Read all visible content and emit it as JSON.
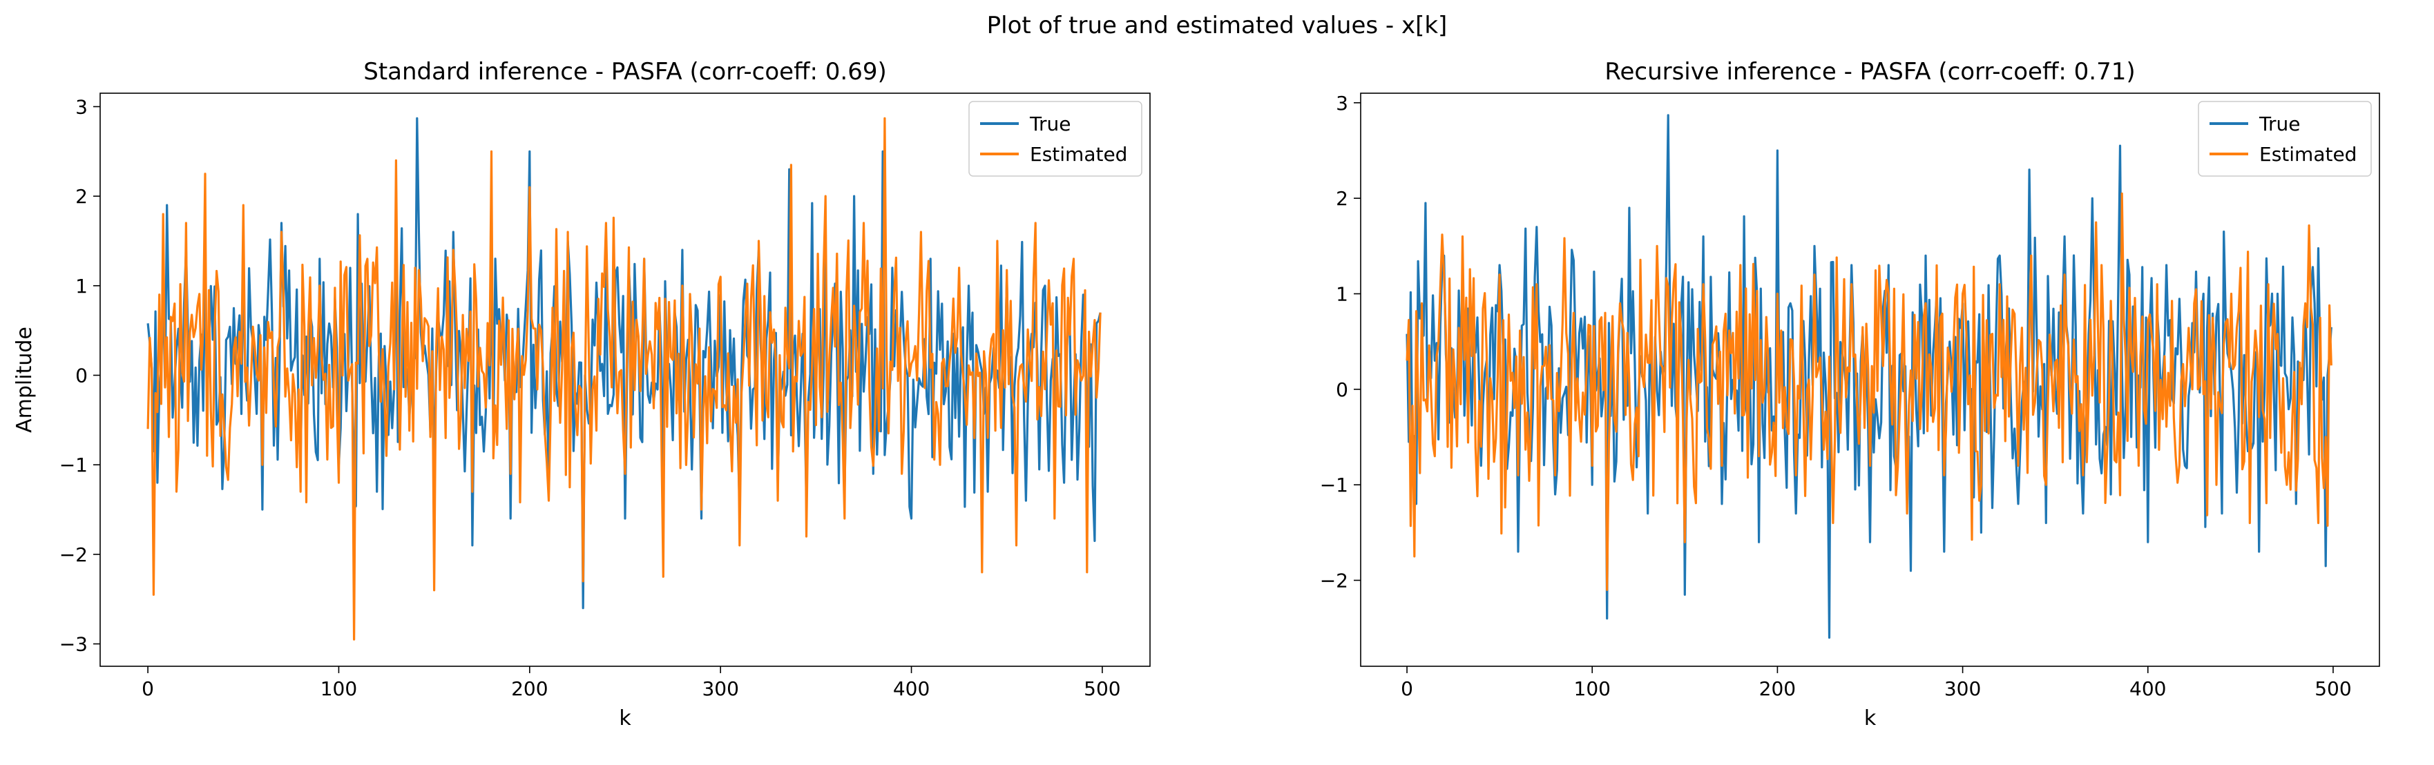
{
  "figure": {
    "suptitle": "Plot of true and estimated values - x[k]"
  },
  "colors": {
    "true": "#1f77b4",
    "estimated": "#ff7f0e",
    "axes": "#000000",
    "legend_border": "#cccccc"
  },
  "chart_data": [
    {
      "type": "line",
      "title": "Standard inference - PASFA (corr-coeff: 0.69)",
      "xlabel": "k",
      "ylabel": "Amplitude",
      "xlim": [
        -25,
        525
      ],
      "ylim": [
        -3.25,
        3.15
      ],
      "xticks": [
        0,
        100,
        200,
        300,
        400,
        500
      ],
      "yticks": [
        -3,
        -2,
        -1,
        0,
        1,
        2,
        3
      ],
      "legend": {
        "position": "upper-right",
        "entries": [
          "True",
          "Estimated"
        ]
      },
      "n_points": 500,
      "series": [
        {
          "name": "True",
          "color": "#1f77b4",
          "anchors": [
            [
              0,
              0.58
            ],
            [
              5,
              -1.2
            ],
            [
              10,
              1.9
            ],
            [
              15,
              0.3
            ],
            [
              20,
              1.4
            ],
            [
              30,
              1.2
            ],
            [
              40,
              -0.8
            ],
            [
              50,
              1.3
            ],
            [
              60,
              -1.5
            ],
            [
              70,
              1.7
            ],
            [
              80,
              -0.9
            ],
            [
              90,
              1.3
            ],
            [
              100,
              -1.0
            ],
            [
              110,
              1.8
            ],
            [
              120,
              -1.3
            ],
            [
              130,
              1.5
            ],
            [
              141,
              2.87
            ],
            [
              150,
              -1.2
            ],
            [
              160,
              1.6
            ],
            [
              170,
              -1.9
            ],
            [
              180,
              1.2
            ],
            [
              190,
              -1.6
            ],
            [
              200,
              2.5
            ],
            [
              210,
              -1.3
            ],
            [
              220,
              1.5
            ],
            [
              228,
              -2.6
            ],
            [
              240,
              1.3
            ],
            [
              250,
              -1.6
            ],
            [
              260,
              1.3
            ],
            [
              270,
              -1.1
            ],
            [
              280,
              1.4
            ],
            [
              290,
              -1.6
            ],
            [
              300,
              0.9
            ],
            [
              310,
              -1.5
            ],
            [
              320,
              1.4
            ],
            [
              330,
              -1.2
            ],
            [
              336,
              2.3
            ],
            [
              345,
              -1.4
            ],
            [
              355,
              1.6
            ],
            [
              365,
              -1.3
            ],
            [
              370,
              2.0
            ],
            [
              380,
              -1.1
            ],
            [
              385,
              2.5
            ],
            [
              390,
              1.2
            ],
            [
              400,
              -1.6
            ],
            [
              410,
              1.3
            ],
            [
              420,
              -0.8
            ],
            [
              430,
              1.0
            ],
            [
              440,
              -1.3
            ],
            [
              450,
              1.1
            ],
            [
              460,
              -1.4
            ],
            [
              470,
              1.0
            ],
            [
              480,
              -1.2
            ],
            [
              490,
              0.9
            ],
            [
              496,
              -1.85
            ],
            [
              499,
              0.7
            ]
          ]
        },
        {
          "name": "Estimated",
          "color": "#ff7f0e",
          "anchors": [
            [
              0,
              -0.6
            ],
            [
              3,
              -2.45
            ],
            [
              8,
              1.8
            ],
            [
              15,
              -1.3
            ],
            [
              20,
              1.7
            ],
            [
              30,
              2.25
            ],
            [
              40,
              -0.6
            ],
            [
              50,
              1.9
            ],
            [
              60,
              -1.0
            ],
            [
              70,
              1.6
            ],
            [
              80,
              -1.3
            ],
            [
              90,
              1.0
            ],
            [
              100,
              -1.2
            ],
            [
              108,
              -2.95
            ],
            [
              115,
              1.3
            ],
            [
              125,
              -0.9
            ],
            [
              130,
              2.4
            ],
            [
              140,
              1.2
            ],
            [
              150,
              -2.4
            ],
            [
              160,
              1.4
            ],
            [
              170,
              -1.3
            ],
            [
              180,
              2.5
            ],
            [
              190,
              -1.1
            ],
            [
              200,
              2.1
            ],
            [
              210,
              -1.4
            ],
            [
              220,
              1.6
            ],
            [
              228,
              -2.3
            ],
            [
              240,
              1.7
            ],
            [
              250,
              -1.1
            ],
            [
              260,
              1.3
            ],
            [
              270,
              -2.25
            ],
            [
              280,
              1.0
            ],
            [
              290,
              -1.5
            ],
            [
              300,
              1.1
            ],
            [
              310,
              -1.9
            ],
            [
              320,
              1.5
            ],
            [
              330,
              -1.4
            ],
            [
              337,
              2.35
            ],
            [
              345,
              -1.8
            ],
            [
              355,
              2.0
            ],
            [
              365,
              -1.6
            ],
            [
              375,
              1.7
            ],
            [
              386,
              2.87
            ],
            [
              395,
              -1.1
            ],
            [
              405,
              1.6
            ],
            [
              415,
              -1.0
            ],
            [
              425,
              1.2
            ],
            [
              437,
              -2.2
            ],
            [
              445,
              1.5
            ],
            [
              455,
              -1.9
            ],
            [
              465,
              1.7
            ],
            [
              475,
              -1.6
            ],
            [
              485,
              1.3
            ],
            [
              492,
              -2.2
            ],
            [
              499,
              0.7
            ]
          ]
        }
      ]
    },
    {
      "type": "line",
      "title": "Recursive inference - PASFA (corr-coeff: 0.71)",
      "xlabel": "k",
      "ylabel": "",
      "xlim": [
        -25,
        525
      ],
      "ylim": [
        -2.9,
        3.1
      ],
      "xticks": [
        0,
        100,
        200,
        300,
        400,
        500
      ],
      "yticks": [
        -2,
        -1,
        0,
        1,
        2,
        3
      ],
      "legend": {
        "position": "upper-right",
        "entries": [
          "True",
          "Estimated"
        ]
      },
      "n_points": 500,
      "series": [
        {
          "name": "True",
          "color": "#1f77b4",
          "anchors": [
            [
              0,
              0.58
            ],
            [
              5,
              -1.2
            ],
            [
              10,
              1.95
            ],
            [
              15,
              0.3
            ],
            [
              20,
              1.4
            ],
            [
              30,
              1.2
            ],
            [
              40,
              -0.8
            ],
            [
              50,
              1.3
            ],
            [
              60,
              -1.7
            ],
            [
              70,
              1.7
            ],
            [
              80,
              -1.1
            ],
            [
              90,
              1.35
            ],
            [
              100,
              -1.0
            ],
            [
              108,
              -2.4
            ],
            [
              120,
              1.9
            ],
            [
              130,
              -1.3
            ],
            [
              141,
              2.87
            ],
            [
              150,
              -2.15
            ],
            [
              160,
              1.6
            ],
            [
              170,
              -1.2
            ],
            [
              180,
              1.2
            ],
            [
              190,
              -1.6
            ],
            [
              200,
              2.5
            ],
            [
              210,
              -1.3
            ],
            [
              220,
              1.5
            ],
            [
              228,
              -2.6
            ],
            [
              240,
              1.3
            ],
            [
              250,
              -1.6
            ],
            [
              260,
              1.3
            ],
            [
              272,
              -1.9
            ],
            [
              280,
              1.4
            ],
            [
              290,
              -1.7
            ],
            [
              300,
              0.9
            ],
            [
              310,
              -1.5
            ],
            [
              320,
              1.4
            ],
            [
              330,
              -1.2
            ],
            [
              336,
              2.3
            ],
            [
              345,
              -1.4
            ],
            [
              355,
              1.6
            ],
            [
              365,
              -1.3
            ],
            [
              370,
              2.0
            ],
            [
              380,
              -1.1
            ],
            [
              385,
              2.55
            ],
            [
              390,
              1.2
            ],
            [
              400,
              -1.6
            ],
            [
              410,
              1.3
            ],
            [
              420,
              -0.8
            ],
            [
              430,
              1.0
            ],
            [
              440,
              -1.3
            ],
            [
              450,
              1.1
            ],
            [
              460,
              -1.7
            ],
            [
              470,
              1.0
            ],
            [
              480,
              -1.2
            ],
            [
              490,
              0.9
            ],
            [
              496,
              -1.85
            ],
            [
              499,
              0.65
            ]
          ]
        },
        {
          "name": "Estimated",
          "color": "#ff7f0e",
          "anchors": [
            [
              0,
              0.3
            ],
            [
              4,
              -1.75
            ],
            [
              8,
              0.9
            ],
            [
              15,
              -0.7
            ],
            [
              20,
              1.2
            ],
            [
              30,
              1.6
            ],
            [
              40,
              -0.6
            ],
            [
              50,
              1.2
            ],
            [
              60,
              -0.9
            ],
            [
              70,
              1.1
            ],
            [
              80,
              -0.9
            ],
            [
              90,
              0.8
            ],
            [
              100,
              -0.8
            ],
            [
              108,
              -2.1
            ],
            [
              115,
              0.9
            ],
            [
              125,
              -0.7
            ],
            [
              135,
              1.5
            ],
            [
              150,
              -1.6
            ],
            [
              160,
              1.1
            ],
            [
              170,
              -0.8
            ],
            [
              180,
              1.3
            ],
            [
              190,
              -0.7
            ],
            [
              200,
              1.0
            ],
            [
              210,
              -0.9
            ],
            [
              220,
              1.2
            ],
            [
              230,
              -1.4
            ],
            [
              240,
              1.1
            ],
            [
              250,
              -0.8
            ],
            [
              260,
              1.0
            ],
            [
              270,
              -1.3
            ],
            [
              280,
              0.9
            ],
            [
              290,
              -0.9
            ],
            [
              300,
              1.0
            ],
            [
              310,
              -1.0
            ],
            [
              320,
              1.1
            ],
            [
              330,
              -0.8
            ],
            [
              337,
              1.4
            ],
            [
              345,
              -1.0
            ],
            [
              355,
              1.2
            ],
            [
              365,
              -0.9
            ],
            [
              375,
              1.3
            ],
            [
              386,
              2.05
            ],
            [
              395,
              -0.8
            ],
            [
              405,
              1.1
            ],
            [
              415,
              -0.7
            ],
            [
              425,
              0.9
            ],
            [
              437,
              -1.0
            ],
            [
              445,
              1.0
            ],
            [
              455,
              -1.4
            ],
            [
              465,
              1.1
            ],
            [
              475,
              -1.0
            ],
            [
              485,
              0.9
            ],
            [
              492,
              -1.4
            ],
            [
              499,
              0.25
            ]
          ]
        }
      ]
    }
  ]
}
